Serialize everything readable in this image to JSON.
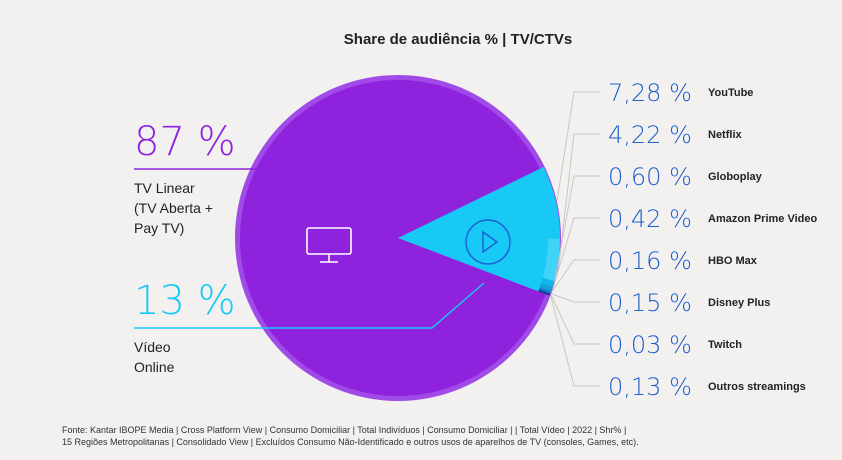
{
  "chart_data": {
    "type": "pie",
    "title": "Share de audiência % | TV/CTVs",
    "segments": [
      {
        "name": "TV Linear (TV Aberta + Pay TV)",
        "value": 87,
        "value_label": "87 %",
        "color": "#8e22dd"
      },
      {
        "name": "Vídeo Online",
        "value": 13,
        "value_label": "13 %",
        "color": "#18c8f5"
      }
    ],
    "segment_labels": {
      "tv_linear": [
        "TV Linear",
        "(TV Aberta +",
        "Pay TV)"
      ],
      "video_online": [
        "Vídeo",
        "Online"
      ]
    },
    "streaming_breakdown": [
      {
        "name": "YouTube",
        "value": 7.28,
        "value_label": "7,28 %"
      },
      {
        "name": "Netflix",
        "value": 4.22,
        "value_label": "4,22 %"
      },
      {
        "name": "Globoplay",
        "value": 0.6,
        "value_label": "0,60 %"
      },
      {
        "name": "Amazon Prime Video",
        "value": 0.42,
        "value_label": "0,42 %"
      },
      {
        "name": "HBO Max",
        "value": 0.16,
        "value_label": "0,16 %"
      },
      {
        "name": "Disney Plus",
        "value": 0.15,
        "value_label": "0,15 %"
      },
      {
        "name": "Twitch",
        "value": 0.03,
        "value_label": "0,03 %"
      },
      {
        "name": "Outros streamings",
        "value": 0.13,
        "value_label": "0,13 %"
      }
    ],
    "icons": [
      "tv-icon",
      "play-icon"
    ]
  },
  "source": [
    "Fonte: Kantar IBOPE Media | Cross Platform View | Consumo Domiciliar | Total Indivíduos | Consumo Domiciliar | | Total Vídeo | 2022 | Shr% |",
    "15 Regiões Metropolitanas | Consolidado View | Excluídos Consumo Não-Identificado e outros usos de aparelhos de TV (consoles, Games, etc)."
  ],
  "colors": {
    "purple": "#8e22dd",
    "purple_light": "#a04ae8",
    "cyan": "#18c8f5",
    "cyan_light": "#52d9fb",
    "blue_value": "#1d5fd0",
    "leader_line": "#c8c7c4"
  }
}
